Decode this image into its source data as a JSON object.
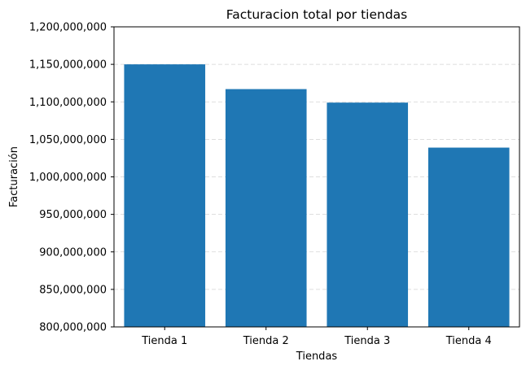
{
  "chart_data": {
    "type": "bar",
    "title": "Facturacion total por tiendas",
    "xlabel": "Tiendas",
    "ylabel": "Facturación",
    "categories": [
      "Tienda 1",
      "Tienda 2",
      "Tienda 3",
      "Tienda 4"
    ],
    "values": [
      1150000000,
      1117000000,
      1099000000,
      1039000000
    ],
    "ylim": [
      800000000,
      1200000000
    ],
    "yticks": [
      800000000,
      850000000,
      900000000,
      950000000,
      1000000000,
      1050000000,
      1100000000,
      1150000000,
      1200000000
    ],
    "ytick_labels": [
      "800,000,000",
      "850,000,000",
      "900,000,000",
      "950,000,000",
      "1,000,000,000",
      "1,050,000,000",
      "1,100,000,000",
      "1,150,000,000",
      "1,200,000,000"
    ],
    "grid": "y-dashed",
    "bar_color": "#1f77b4",
    "grid_color": "#d3d3d3"
  }
}
